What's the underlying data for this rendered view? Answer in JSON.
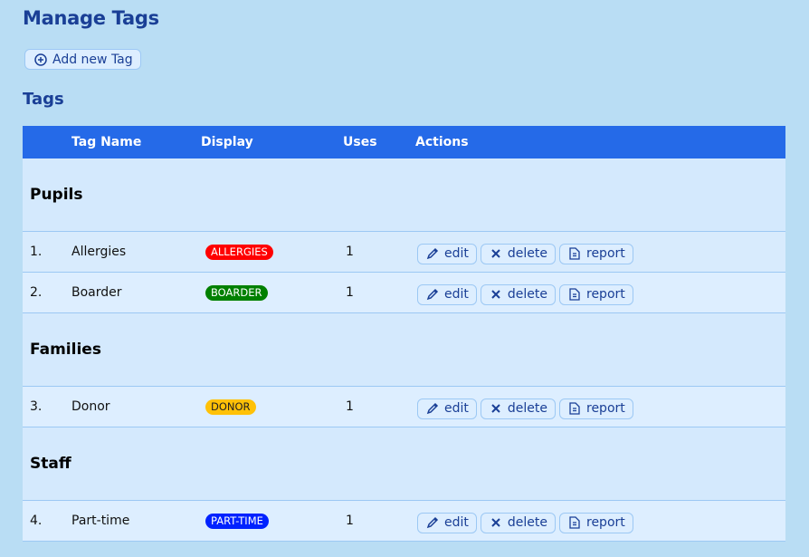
{
  "page_title": "Manage Tags",
  "add_button": {
    "label": "Add new Tag",
    "icon": "plus-circle-icon"
  },
  "section_title": "Tags",
  "columns": [
    "",
    "Tag Name",
    "Display",
    "Uses",
    "Actions"
  ],
  "actions": {
    "edit": "edit",
    "delete": "delete",
    "report": "report"
  },
  "groups": [
    {
      "name": "Pupils",
      "tags": [
        {
          "num": "1.",
          "name": "Allergies",
          "display": "ALLERGIES",
          "color": "#ff0000",
          "uses": "1"
        },
        {
          "num": "2.",
          "name": "Boarder",
          "display": "BOARDER",
          "color": "#008000",
          "uses": "1"
        }
      ]
    },
    {
      "name": "Families",
      "tags": [
        {
          "num": "3.",
          "name": "Donor",
          "display": "DONOR",
          "color": "#ffc107",
          "text_color": "#222",
          "uses": "1"
        }
      ]
    },
    {
      "name": "Staff",
      "tags": [
        {
          "num": "4.",
          "name": "Part-time",
          "display": "PART-TIME",
          "color": "#0022ff",
          "uses": "1"
        }
      ]
    }
  ]
}
